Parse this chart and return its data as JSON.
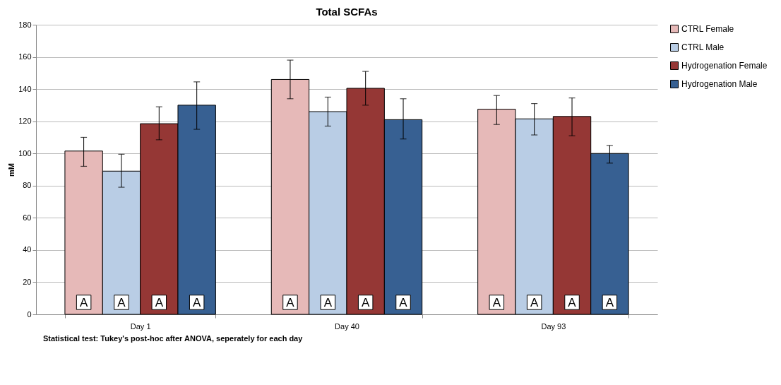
{
  "chart_data": {
    "type": "bar",
    "title": "Total SCFAs",
    "ylabel": "mM",
    "categories": [
      "Day 1",
      "Day 40",
      "Day 93"
    ],
    "series": [
      {
        "name": "CTRL Female",
        "color": "#e6b9b8",
        "values": [
          101.5,
          146,
          127.5
        ],
        "errors": [
          [
            92,
            110
          ],
          [
            134,
            158
          ],
          [
            118,
            136
          ]
        ],
        "value_labels": [
          "A",
          "A",
          "A"
        ]
      },
      {
        "name": "CTRL Male",
        "color": "#b9cde5",
        "values": [
          89,
          126,
          121.5
        ],
        "errors": [
          [
            79,
            99.5
          ],
          [
            117,
            135
          ],
          [
            111.5,
            131
          ]
        ],
        "value_labels": [
          "A",
          "A",
          "A"
        ]
      },
      {
        "name": "Hydrogenation Female",
        "color": "#953735",
        "values": [
          118.5,
          140.5,
          123
        ],
        "errors": [
          [
            108.5,
            129
          ],
          [
            130,
            151
          ],
          [
            111,
            134.5
          ]
        ],
        "value_labels": [
          "A",
          "A",
          "A"
        ]
      },
      {
        "name": "Hydrogenation Male",
        "color": "#376092",
        "values": [
          130,
          121,
          100
        ],
        "errors": [
          [
            115,
            144.5
          ],
          [
            109,
            134
          ],
          [
            94,
            105
          ]
        ],
        "value_labels": [
          "A",
          "A",
          "A"
        ]
      }
    ],
    "ylim": [
      0,
      180
    ],
    "yticks": [
      0,
      20,
      40,
      60,
      80,
      100,
      120,
      140,
      160,
      180
    ],
    "grid": "y",
    "legend": "right",
    "annotations": [
      "Statistical test: Tukey's post-hoc after ANOVA, seperately for each day"
    ]
  }
}
